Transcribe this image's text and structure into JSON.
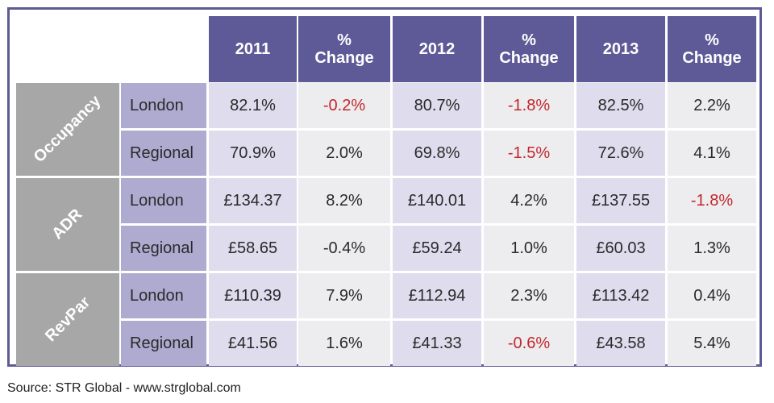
{
  "chart_data": {
    "type": "table",
    "columns": [
      "2011",
      "% Change",
      "2012",
      "% Change",
      "2013",
      "% Change"
    ],
    "groups": [
      {
        "name": "Occupancy",
        "rows": [
          {
            "location": "London",
            "cells": [
              "82.1%",
              "-0.2%",
              "80.7%",
              "-1.8%",
              "82.5%",
              "2.2%"
            ]
          },
          {
            "location": "Regional",
            "cells": [
              "70.9%",
              "2.0%",
              "69.8%",
              "-1.5%",
              "72.6%",
              "4.1%"
            ]
          }
        ]
      },
      {
        "name": "ADR",
        "rows": [
          {
            "location": "London",
            "cells": [
              "£134.37",
              "8.2%",
              "£140.01",
              "4.2%",
              "£137.55",
              "-1.8%"
            ]
          },
          {
            "location": "Regional",
            "cells": [
              "£58.65",
              "-0.4%",
              "£59.24",
              "1.0%",
              "£60.03",
              "1.3%"
            ]
          }
        ]
      },
      {
        "name": "RevPar",
        "rows": [
          {
            "location": "London",
            "cells": [
              "£110.39",
              "7.9%",
              "£112.94",
              "2.3%",
              "£113.42",
              "0.4%"
            ]
          },
          {
            "location": "Regional",
            "cells": [
              "£41.56",
              "1.6%",
              "£41.33",
              "-0.6%",
              "£43.58",
              "5.4%"
            ]
          }
        ]
      }
    ],
    "negative_highlight": [
      {
        "group": 0,
        "row": 0,
        "col": 1
      },
      {
        "group": 0,
        "row": 0,
        "col": 3
      },
      {
        "group": 0,
        "row": 1,
        "col": 3
      },
      {
        "group": 1,
        "row": 0,
        "col": 5
      },
      {
        "group": 2,
        "row": 1,
        "col": 3
      }
    ]
  },
  "colors": {
    "header": "#5e5a97",
    "group_cell": "#a7a7a7",
    "location_cell": "#aeaad0",
    "value_cell": "#dedced",
    "change_cell": "#ededef",
    "negative_text": "#c3272d"
  },
  "source": "Source: STR Global - www.strglobal.com"
}
